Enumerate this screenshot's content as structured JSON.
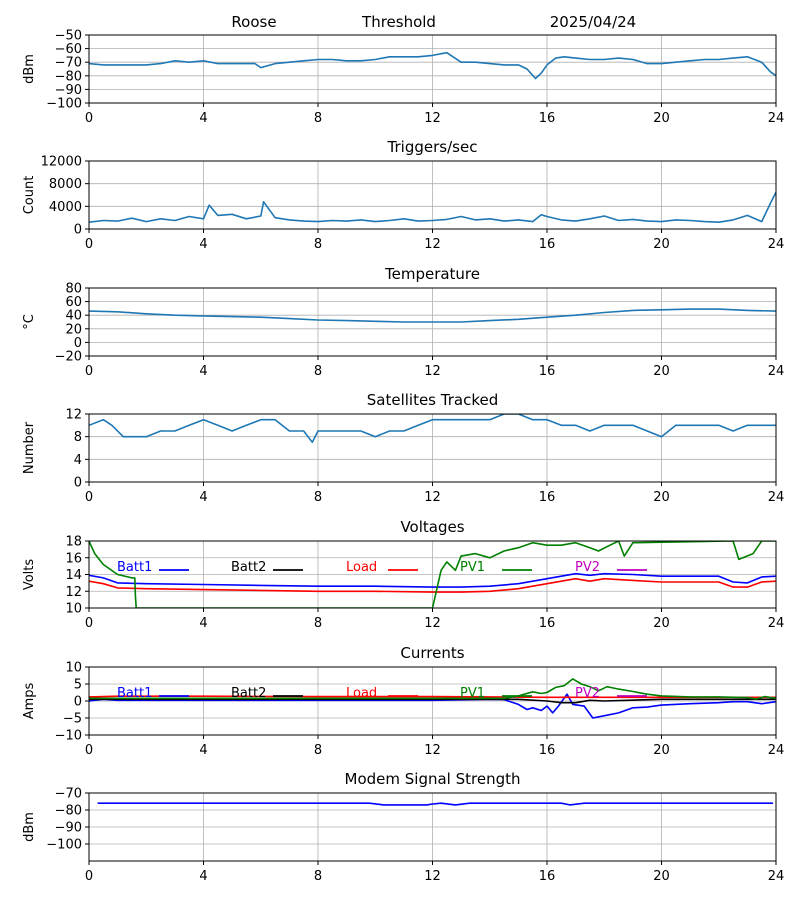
{
  "header": {
    "station": "Roose",
    "mode": "Threshold",
    "date": "2025/04/24"
  },
  "legend_labels": [
    "Batt1",
    "Batt2",
    "Load",
    "PV1",
    "PV2"
  ],
  "colors": {
    "line": "#1f77b4",
    "batt1": "#0000ff",
    "batt2": "#000000",
    "load": "#ff0000",
    "pv1": "#008000",
    "pv2": "#bf00bf",
    "grid": "#b0b0b0"
  },
  "x_ticks": [
    0,
    4,
    8,
    12,
    16,
    20,
    24
  ],
  "chart_data": [
    {
      "id": "signal",
      "type": "line",
      "title": "",
      "ylabel": "dBm",
      "xlim": [
        0,
        24
      ],
      "ylim": [
        -100,
        -50
      ],
      "yticks": [
        -50,
        -60,
        -70,
        -80,
        -90,
        -100
      ],
      "grid": true,
      "series": [
        {
          "color": "#1f77b4",
          "x": [
            0,
            0.5,
            1,
            2,
            2.5,
            3,
            3.5,
            4,
            4.5,
            5,
            5.5,
            5.8,
            6,
            6.5,
            7,
            7.5,
            8,
            8.5,
            9,
            9.5,
            10,
            10.5,
            11,
            11.5,
            12,
            12.5,
            13,
            13.5,
            14,
            14.5,
            15,
            15.3,
            15.6,
            15.8,
            16,
            16.3,
            16.6,
            17,
            17.5,
            18,
            18.5,
            19,
            19.5,
            20,
            20.5,
            21,
            21.5,
            22,
            22.5,
            23,
            23.5,
            23.8,
            24
          ],
          "y": [
            -71,
            -72,
            -72,
            -72,
            -71,
            -69,
            -70,
            -69,
            -71,
            -71,
            -71,
            -71,
            -74,
            -71,
            -70,
            -69,
            -68,
            -68,
            -69,
            -69,
            -68,
            -66,
            -66,
            -66,
            -65,
            -63,
            -70,
            -70,
            -71,
            -72,
            -72,
            -75,
            -82,
            -78,
            -72,
            -67,
            -66,
            -67,
            -68,
            -68,
            -67,
            -68,
            -71,
            -71,
            -70,
            -69,
            -68,
            -68,
            -67,
            -66,
            -70,
            -77,
            -80
          ]
        }
      ]
    },
    {
      "id": "triggers",
      "type": "line",
      "title": "Triggers/sec",
      "ylabel": "Count",
      "xlim": [
        0,
        24
      ],
      "ylim": [
        0,
        12000
      ],
      "yticks": [
        0,
        4000,
        8000,
        12000
      ],
      "grid": true,
      "series": [
        {
          "color": "#1f77b4",
          "x": [
            0,
            0.5,
            1,
            1.5,
            2,
            2.5,
            3,
            3.5,
            4,
            4.2,
            4.5,
            5,
            5.5,
            6,
            6.1,
            6.5,
            7,
            7.5,
            8,
            8.5,
            9,
            9.5,
            10,
            10.5,
            11,
            11.5,
            12,
            12.5,
            13,
            13.5,
            14,
            14.5,
            15,
            15.5,
            15.8,
            16,
            16.5,
            17,
            17.5,
            18,
            18.5,
            19,
            19.5,
            20,
            20.5,
            21,
            21.5,
            22,
            22.5,
            23,
            23.5,
            23.8,
            24
          ],
          "y": [
            1200,
            1500,
            1400,
            1900,
            1300,
            1800,
            1500,
            2200,
            1800,
            4200,
            2400,
            2600,
            1800,
            2300,
            4800,
            2000,
            1600,
            1400,
            1300,
            1500,
            1400,
            1600,
            1300,
            1500,
            1800,
            1400,
            1500,
            1700,
            2200,
            1600,
            1800,
            1400,
            1600,
            1300,
            2500,
            2200,
            1600,
            1400,
            1800,
            2300,
            1500,
            1700,
            1400,
            1300,
            1600,
            1500,
            1300,
            1200,
            1600,
            2400,
            1300,
            4500,
            6500
          ]
        }
      ]
    },
    {
      "id": "temperature",
      "type": "line",
      "title": "Temperature",
      "ylabel": "°C",
      "xlim": [
        0,
        24
      ],
      "ylim": [
        -20,
        80
      ],
      "yticks": [
        -20,
        0,
        20,
        40,
        60,
        80
      ],
      "grid": true,
      "series": [
        {
          "color": "#1f77b4",
          "x": [
            0,
            1,
            2,
            3,
            4,
            5,
            6,
            7,
            8,
            9,
            10,
            11,
            12,
            13,
            14,
            15,
            16,
            17,
            18,
            19,
            20,
            21,
            22,
            23,
            24
          ],
          "y": [
            46,
            45,
            42,
            40,
            39,
            38,
            37,
            35,
            33,
            32,
            31,
            30,
            30,
            30,
            32,
            34,
            37,
            40,
            44,
            47,
            48,
            49,
            49,
            47,
            46
          ]
        }
      ]
    },
    {
      "id": "satellites",
      "type": "line",
      "title": "Satellites Tracked",
      "ylabel": "Number",
      "xlim": [
        0,
        24
      ],
      "ylim": [
        0,
        12
      ],
      "yticks": [
        0,
        4,
        8,
        12
      ],
      "grid": true,
      "series": [
        {
          "color": "#1f77b4",
          "x": [
            0,
            0.5,
            0.8,
            1.2,
            2,
            2.5,
            3,
            3.5,
            4,
            4.5,
            5,
            5.5,
            6,
            6.5,
            7,
            7.5,
            7.8,
            8,
            8.5,
            9,
            9.5,
            10,
            10.5,
            11,
            11.5,
            12,
            12.5,
            13,
            13.5,
            14,
            14.5,
            15,
            15.5,
            16,
            16.5,
            17,
            17.5,
            18,
            18.5,
            19,
            19.5,
            20,
            20.5,
            21,
            21.5,
            22,
            22.5,
            23,
            23.5,
            24
          ],
          "y": [
            10,
            11,
            10,
            8,
            8,
            9,
            9,
            10,
            11,
            10,
            9,
            10,
            11,
            11,
            9,
            9,
            7,
            9,
            9,
            9,
            9,
            8,
            9,
            9,
            10,
            11,
            11,
            11,
            11,
            11,
            12,
            12,
            11,
            11,
            10,
            10,
            9,
            10,
            10,
            10,
            9,
            8,
            10,
            10,
            10,
            10,
            9,
            10,
            10,
            10
          ]
        }
      ]
    },
    {
      "id": "voltages",
      "type": "line",
      "title": "Voltages",
      "ylabel": "Volts",
      "xlim": [
        0,
        24
      ],
      "ylim": [
        10,
        18
      ],
      "yticks": [
        10,
        12,
        14,
        16,
        18
      ],
      "grid": true,
      "series": [
        {
          "name": "Batt1",
          "color": "#0000ff",
          "x": [
            0,
            0.5,
            1,
            2,
            4,
            6,
            8,
            10,
            12,
            13,
            14,
            15,
            15.5,
            16,
            16.5,
            17,
            17.5,
            18,
            19,
            20,
            22,
            22.5,
            23,
            23.5,
            24
          ],
          "y": [
            13.9,
            13.6,
            13.0,
            12.9,
            12.8,
            12.7,
            12.6,
            12.6,
            12.5,
            12.5,
            12.6,
            12.9,
            13.2,
            13.5,
            13.8,
            14.1,
            13.9,
            14.1,
            14.0,
            13.8,
            13.8,
            13.1,
            13.0,
            13.7,
            13.8
          ]
        },
        {
          "name": "Batt2",
          "color": "#000000",
          "x": [],
          "y": []
        },
        {
          "name": "Load",
          "color": "#ff0000",
          "x": [
            0,
            0.5,
            1,
            2,
            4,
            6,
            8,
            10,
            12,
            13,
            14,
            15,
            15.5,
            16,
            16.5,
            17,
            17.5,
            18,
            19,
            20,
            22,
            22.5,
            23,
            23.5,
            24
          ],
          "y": [
            13.2,
            12.9,
            12.4,
            12.3,
            12.2,
            12.1,
            12.0,
            12.0,
            11.9,
            11.9,
            12.0,
            12.3,
            12.6,
            12.9,
            13.2,
            13.5,
            13.2,
            13.5,
            13.3,
            13.1,
            13.1,
            12.5,
            12.5,
            13.1,
            13.2
          ]
        },
        {
          "name": "PV1",
          "color": "#008000",
          "x": [
            0,
            0.2,
            0.5,
            1,
            1.5,
            1.6,
            1.62,
            1.65,
            12,
            12.3,
            12.5,
            12.8,
            13,
            13.5,
            14,
            14.5,
            15,
            15.5,
            16,
            16.5,
            17,
            17.5,
            17.8,
            18.2,
            18.5,
            18.7,
            19,
            22.5,
            22.7,
            23.2,
            23.5,
            24
          ],
          "y": [
            18,
            16.5,
            15.2,
            14.0,
            13.6,
            13.6,
            11.5,
            10,
            10,
            14.5,
            15.5,
            14.5,
            16.2,
            16.5,
            16.0,
            16.8,
            17.2,
            17.8,
            17.5,
            17.5,
            17.8,
            17.2,
            16.8,
            17.5,
            18,
            16.2,
            17.8,
            18,
            15.8,
            16.5,
            18,
            18
          ]
        },
        {
          "name": "PV2",
          "color": "#bf00bf",
          "x": [],
          "y": []
        }
      ]
    },
    {
      "id": "currents",
      "type": "line",
      "title": "Currents",
      "ylabel": "Amps",
      "xlim": [
        0,
        24
      ],
      "ylim": [
        -10,
        10
      ],
      "yticks": [
        -10,
        -5,
        0,
        5,
        10
      ],
      "grid": true,
      "series": [
        {
          "name": "Batt1",
          "color": "#0000ff",
          "x": [
            0,
            0.5,
            1,
            4,
            8,
            12,
            14,
            14.5,
            15,
            15.3,
            15.5,
            15.8,
            16,
            16.2,
            16.4,
            16.7,
            16.9,
            17.3,
            17.6,
            17.9,
            18.5,
            19,
            19.5,
            20,
            21,
            22,
            22.5,
            23,
            23.5,
            24
          ],
          "y": [
            0,
            0.5,
            0.2,
            0.2,
            0.2,
            0.2,
            0.5,
            0.4,
            -1,
            -2.5,
            -2,
            -2.8,
            -1.5,
            -3.5,
            -1.5,
            2,
            -1,
            -1.5,
            -5,
            -4.5,
            -3.5,
            -2,
            -1.8,
            -1.2,
            -0.8,
            -0.5,
            -0.2,
            -0.2,
            -0.8,
            -0.2
          ]
        },
        {
          "name": "Batt2",
          "color": "#000000",
          "x": [
            0,
            4,
            8,
            12,
            15,
            16,
            16.5,
            17,
            17.5,
            18,
            20,
            22,
            24
          ],
          "y": [
            0.5,
            0.5,
            0.5,
            0.5,
            0.5,
            0,
            -0.5,
            -0.5,
            0.2,
            0,
            0.5,
            0.5,
            0.5
          ]
        },
        {
          "name": "Load",
          "color": "#ff0000",
          "x": [
            0,
            1,
            4,
            8,
            12,
            14,
            16,
            18,
            20,
            22,
            24
          ],
          "y": [
            1.2,
            1.4,
            1.4,
            1.3,
            1.3,
            1.2,
            1.1,
            1.1,
            1.1,
            1.1,
            1.1
          ]
        },
        {
          "name": "PV1",
          "color": "#008000",
          "x": [
            0,
            4,
            8,
            12,
            14.5,
            15,
            15.5,
            15.8,
            16,
            16.3,
            16.6,
            16.9,
            17.2,
            17.5,
            17.8,
            18.1,
            18.5,
            19,
            19.5,
            20,
            21,
            22,
            23,
            23.3,
            23.6,
            24
          ],
          "y": [
            0.8,
            0.8,
            0.8,
            0.8,
            0.8,
            1.5,
            2.7,
            2.2,
            2.5,
            4,
            4.5,
            6.5,
            5,
            4.2,
            3,
            4.2,
            3.5,
            2.8,
            2,
            1.5,
            1.2,
            1.2,
            1.0,
            0.6,
            1.3,
            0.8
          ]
        },
        {
          "name": "PV2",
          "color": "#bf00bf",
          "x": [],
          "y": []
        }
      ]
    },
    {
      "id": "modem",
      "type": "line",
      "title": "Modem Signal Strength",
      "ylabel": "dBm",
      "xlim": [
        0,
        24
      ],
      "ylim": [
        -110,
        -70
      ],
      "yticks": [
        -70,
        -80,
        -90,
        -100
      ],
      "grid": true,
      "series": [
        {
          "color": "#0000ff",
          "x": [
            0.3,
            4,
            8,
            9.8,
            10.3,
            11,
            11.8,
            12,
            12.3,
            12.8,
            13.3,
            14,
            15,
            16,
            16.5,
            16.8,
            17.3,
            18,
            20,
            22,
            23.9
          ],
          "y": [
            -76,
            -76,
            -76,
            -76,
            -77,
            -77,
            -77,
            -76.5,
            -76,
            -77,
            -76,
            -76,
            -76,
            -76,
            -76,
            -77,
            -76,
            -76,
            -76,
            -76,
            -76
          ]
        }
      ]
    }
  ]
}
